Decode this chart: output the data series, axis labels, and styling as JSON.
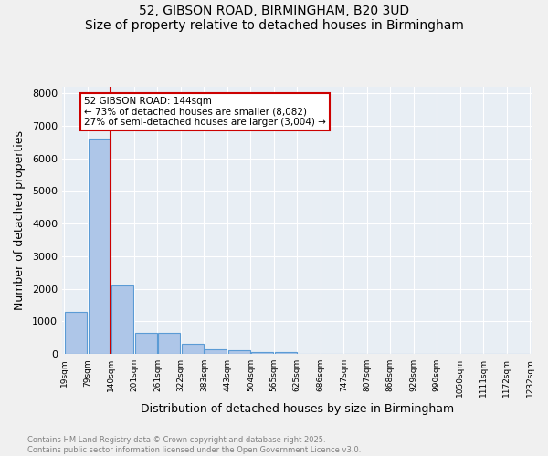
{
  "title_line1": "52, GIBSON ROAD, BIRMINGHAM, B20 3UD",
  "title_line2": "Size of property relative to detached houses in Birmingham",
  "xlabel": "Distribution of detached houses by size in Birmingham",
  "ylabel": "Number of detached properties",
  "property_label": "52 GIBSON ROAD: 144sqm",
  "annotation_line1": "← 73% of detached houses are smaller (8,082)",
  "annotation_line2": "27% of semi-detached houses are larger (3,004) →",
  "bin_labels": [
    "19sqm",
    "79sqm",
    "140sqm",
    "201sqm",
    "261sqm",
    "322sqm",
    "383sqm",
    "443sqm",
    "504sqm",
    "565sqm",
    "625sqm",
    "686sqm",
    "747sqm",
    "807sqm",
    "868sqm",
    "929sqm",
    "990sqm",
    "1050sqm",
    "1111sqm",
    "1172sqm",
    "1232sqm"
  ],
  "bar_heights": [
    1300,
    6600,
    2100,
    650,
    650,
    300,
    150,
    100,
    50,
    50,
    0,
    0,
    0,
    0,
    0,
    0,
    0,
    0,
    0,
    0
  ],
  "bar_color": "#aec6e8",
  "bar_edge_color": "#5b9bd5",
  "vline_color": "#cc0000",
  "background_color": "#e8eef4",
  "grid_color": "#ffffff",
  "ylim": [
    0,
    8200
  ],
  "yticks": [
    0,
    1000,
    2000,
    3000,
    4000,
    5000,
    6000,
    7000,
    8000
  ],
  "footer_line1": "Contains HM Land Registry data © Crown copyright and database right 2025.",
  "footer_line2": "Contains public sector information licensed under the Open Government Licence v3.0."
}
